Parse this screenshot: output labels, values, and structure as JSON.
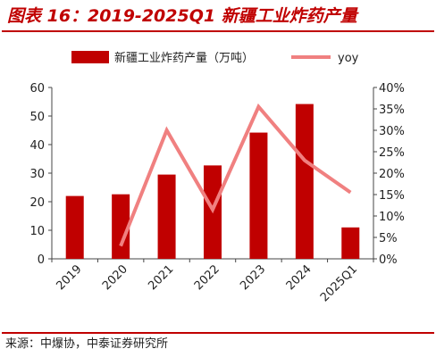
{
  "header": {
    "title": "图表 16：2019-2025Q1 新疆工业炸药产量"
  },
  "footer": {
    "source": "来源：中爆协，中泰证券研究所"
  },
  "colors": {
    "bar": "#c00000",
    "line": "#f08080",
    "accent": "#c00000"
  },
  "chart_data": {
    "type": "bar",
    "title": "",
    "categories": [
      "2019",
      "2020",
      "2021",
      "2022",
      "2023",
      "2024",
      "2025Q1"
    ],
    "series": [
      {
        "name": "新疆工业炸药产量（万吨）",
        "type": "bar",
        "axis": "left",
        "values": [
          22,
          22.6,
          29.5,
          32.7,
          44.2,
          54.2,
          11
        ]
      },
      {
        "name": "yoy",
        "type": "line",
        "axis": "right",
        "values": [
          null,
          3,
          30,
          11.5,
          35.5,
          23,
          15.5
        ]
      }
    ],
    "y_left": {
      "min": 0,
      "max": 60,
      "ticks": [
        "0",
        "10",
        "20",
        "30",
        "40",
        "50",
        "60"
      ]
    },
    "y_right": {
      "min": 0,
      "max": 40,
      "ticks": [
        "0%",
        "5%",
        "10%",
        "15%",
        "20%",
        "25%",
        "30%",
        "35%",
        "40%"
      ]
    },
    "legend_position": "top",
    "grid": false
  }
}
